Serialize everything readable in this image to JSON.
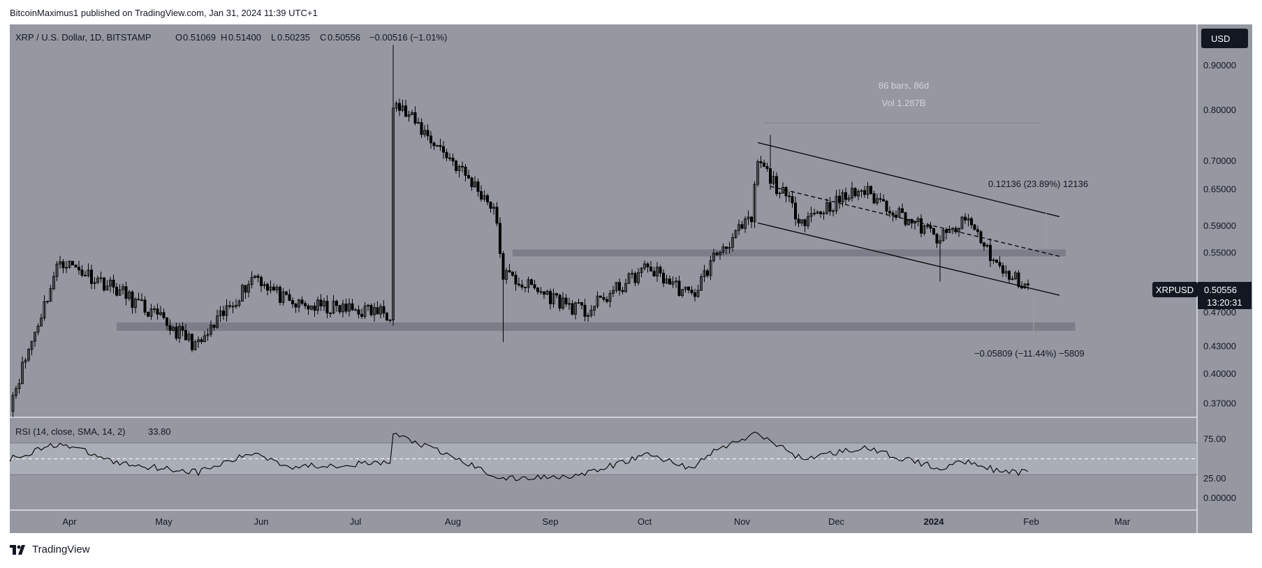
{
  "header": {
    "publisher_line": "BitcoinMaximus1 published on TradingView.com, Jan 31, 2024 11:39 UTC+1"
  },
  "legend": {
    "symbol": "XRP / U.S. Dollar, 1D, BITSTAMP",
    "o_label": "O",
    "o_value": "0.51069",
    "h_label": "H",
    "h_value": "0.51400",
    "l_label": "L",
    "l_value": "0.50235",
    "c_label": "C",
    "c_value": "0.50556",
    "change": "−0.00516 (−1.01%)"
  },
  "currency_button": "USD",
  "price_axis": {
    "labels": [
      "0.90000",
      "0.80000",
      "0.70000",
      "0.65000",
      "0.59000",
      "0.55000",
      "0.47000",
      "0.43000",
      "0.40000",
      "0.37000"
    ]
  },
  "price_tag": {
    "symbol": "XRPUSD",
    "price": "0.50556",
    "countdown": "13:20:31"
  },
  "time_axis": {
    "labels": [
      "Apr",
      "May",
      "Jun",
      "Jul",
      "Aug",
      "Sep",
      "Oct",
      "Nov",
      "Dec",
      "2024",
      "Feb",
      "Mar"
    ]
  },
  "annotations": {
    "bars_range": "86 bars, 86d",
    "volume": "Vol 1.287B",
    "upper_measure": "0.12136 (23.89%) 12136",
    "lower_measure": "−0.05809 (−11.44%) −5809"
  },
  "rsi": {
    "label": "RSI (14, close, SMA, 14, 2)",
    "value": "33.80",
    "axis_labels": [
      "75.00",
      "25.00",
      "0.00000"
    ]
  },
  "footer": {
    "brand": "TradingView"
  },
  "colors": {
    "chart_background": "#9598a1",
    "rsi_band": "#b2b5be",
    "zone": "#787b86",
    "candle": "#000000",
    "price_tag_bg": "#131722"
  },
  "chart_data": {
    "type": "candlestick",
    "title": "XRP / U.S. Dollar, 1D, BITSTAMP",
    "y_scale": "log",
    "ylim": [
      0.36,
      0.97
    ],
    "x_range": [
      "2023-03-13",
      "2024-03-25"
    ],
    "horizontal_zones": [
      {
        "name": "resistance",
        "low": 0.545,
        "high": 0.555,
        "from": "2023-08-20",
        "to": "2024-02-12"
      },
      {
        "name": "support",
        "low": 0.448,
        "high": 0.458,
        "from": "2023-04-16",
        "to": "2024-02-15"
      }
    ],
    "channel": {
      "upper": [
        [
          "2023-11-06",
          0.735
        ],
        [
          "2024-02-10",
          0.605
        ]
      ],
      "middle": [
        [
          "2023-11-10",
          0.655
        ],
        [
          "2024-02-10",
          0.545
        ]
      ],
      "lower": [
        [
          "2023-11-06",
          0.595
        ],
        [
          "2024-02-10",
          0.492
        ]
      ]
    },
    "key_points": [
      {
        "date": "2023-03-13",
        "close": 0.37
      },
      {
        "date": "2023-03-29",
        "close": 0.54
      },
      {
        "date": "2023-04-16",
        "close": 0.5
      },
      {
        "date": "2023-05-12",
        "close": 0.43
      },
      {
        "date": "2023-05-30",
        "close": 0.52
      },
      {
        "date": "2023-06-10",
        "close": 0.48
      },
      {
        "date": "2023-07-12",
        "close": 0.47
      },
      {
        "date": "2023-07-13",
        "close": 0.82
      },
      {
        "date": "2023-08-01",
        "close": 0.7
      },
      {
        "date": "2023-08-14",
        "close": 0.62
      },
      {
        "date": "2023-08-17",
        "close": 0.52
      },
      {
        "date": "2023-09-12",
        "close": 0.47
      },
      {
        "date": "2023-10-02",
        "close": 0.53
      },
      {
        "date": "2023-10-16",
        "close": 0.49
      },
      {
        "date": "2023-10-24",
        "close": 0.55
      },
      {
        "date": "2023-11-04",
        "close": 0.6
      },
      {
        "date": "2023-11-06",
        "close": 0.7
      },
      {
        "date": "2023-11-20",
        "close": 0.6
      },
      {
        "date": "2023-12-09",
        "close": 0.65
      },
      {
        "date": "2024-01-03",
        "close": 0.57
      },
      {
        "date": "2024-01-12",
        "close": 0.6
      },
      {
        "date": "2024-01-23",
        "close": 0.52
      },
      {
        "date": "2024-01-31",
        "close": 0.50556
      }
    ],
    "rsi_series": {
      "name": "RSI",
      "ylim": [
        0,
        100
      ],
      "upper_band": 70,
      "lower_band": 30,
      "mid": 50,
      "points": [
        [
          "2023-03-13",
          50
        ],
        [
          "2023-03-29",
          70
        ],
        [
          "2023-04-16",
          45
        ],
        [
          "2023-05-12",
          33
        ],
        [
          "2023-05-30",
          58
        ],
        [
          "2023-06-10",
          40
        ],
        [
          "2023-07-12",
          45
        ],
        [
          "2023-07-13",
          82
        ],
        [
          "2023-08-01",
          52
        ],
        [
          "2023-08-17",
          24
        ],
        [
          "2023-09-12",
          30
        ],
        [
          "2023-10-02",
          56
        ],
        [
          "2023-10-16",
          38
        ],
        [
          "2023-10-24",
          62
        ],
        [
          "2023-11-06",
          82
        ],
        [
          "2023-11-20",
          50
        ],
        [
          "2023-12-09",
          64
        ],
        [
          "2024-01-03",
          38
        ],
        [
          "2024-01-12",
          48
        ],
        [
          "2024-01-23",
          32
        ],
        [
          "2024-01-31",
          33.8
        ]
      ]
    }
  }
}
